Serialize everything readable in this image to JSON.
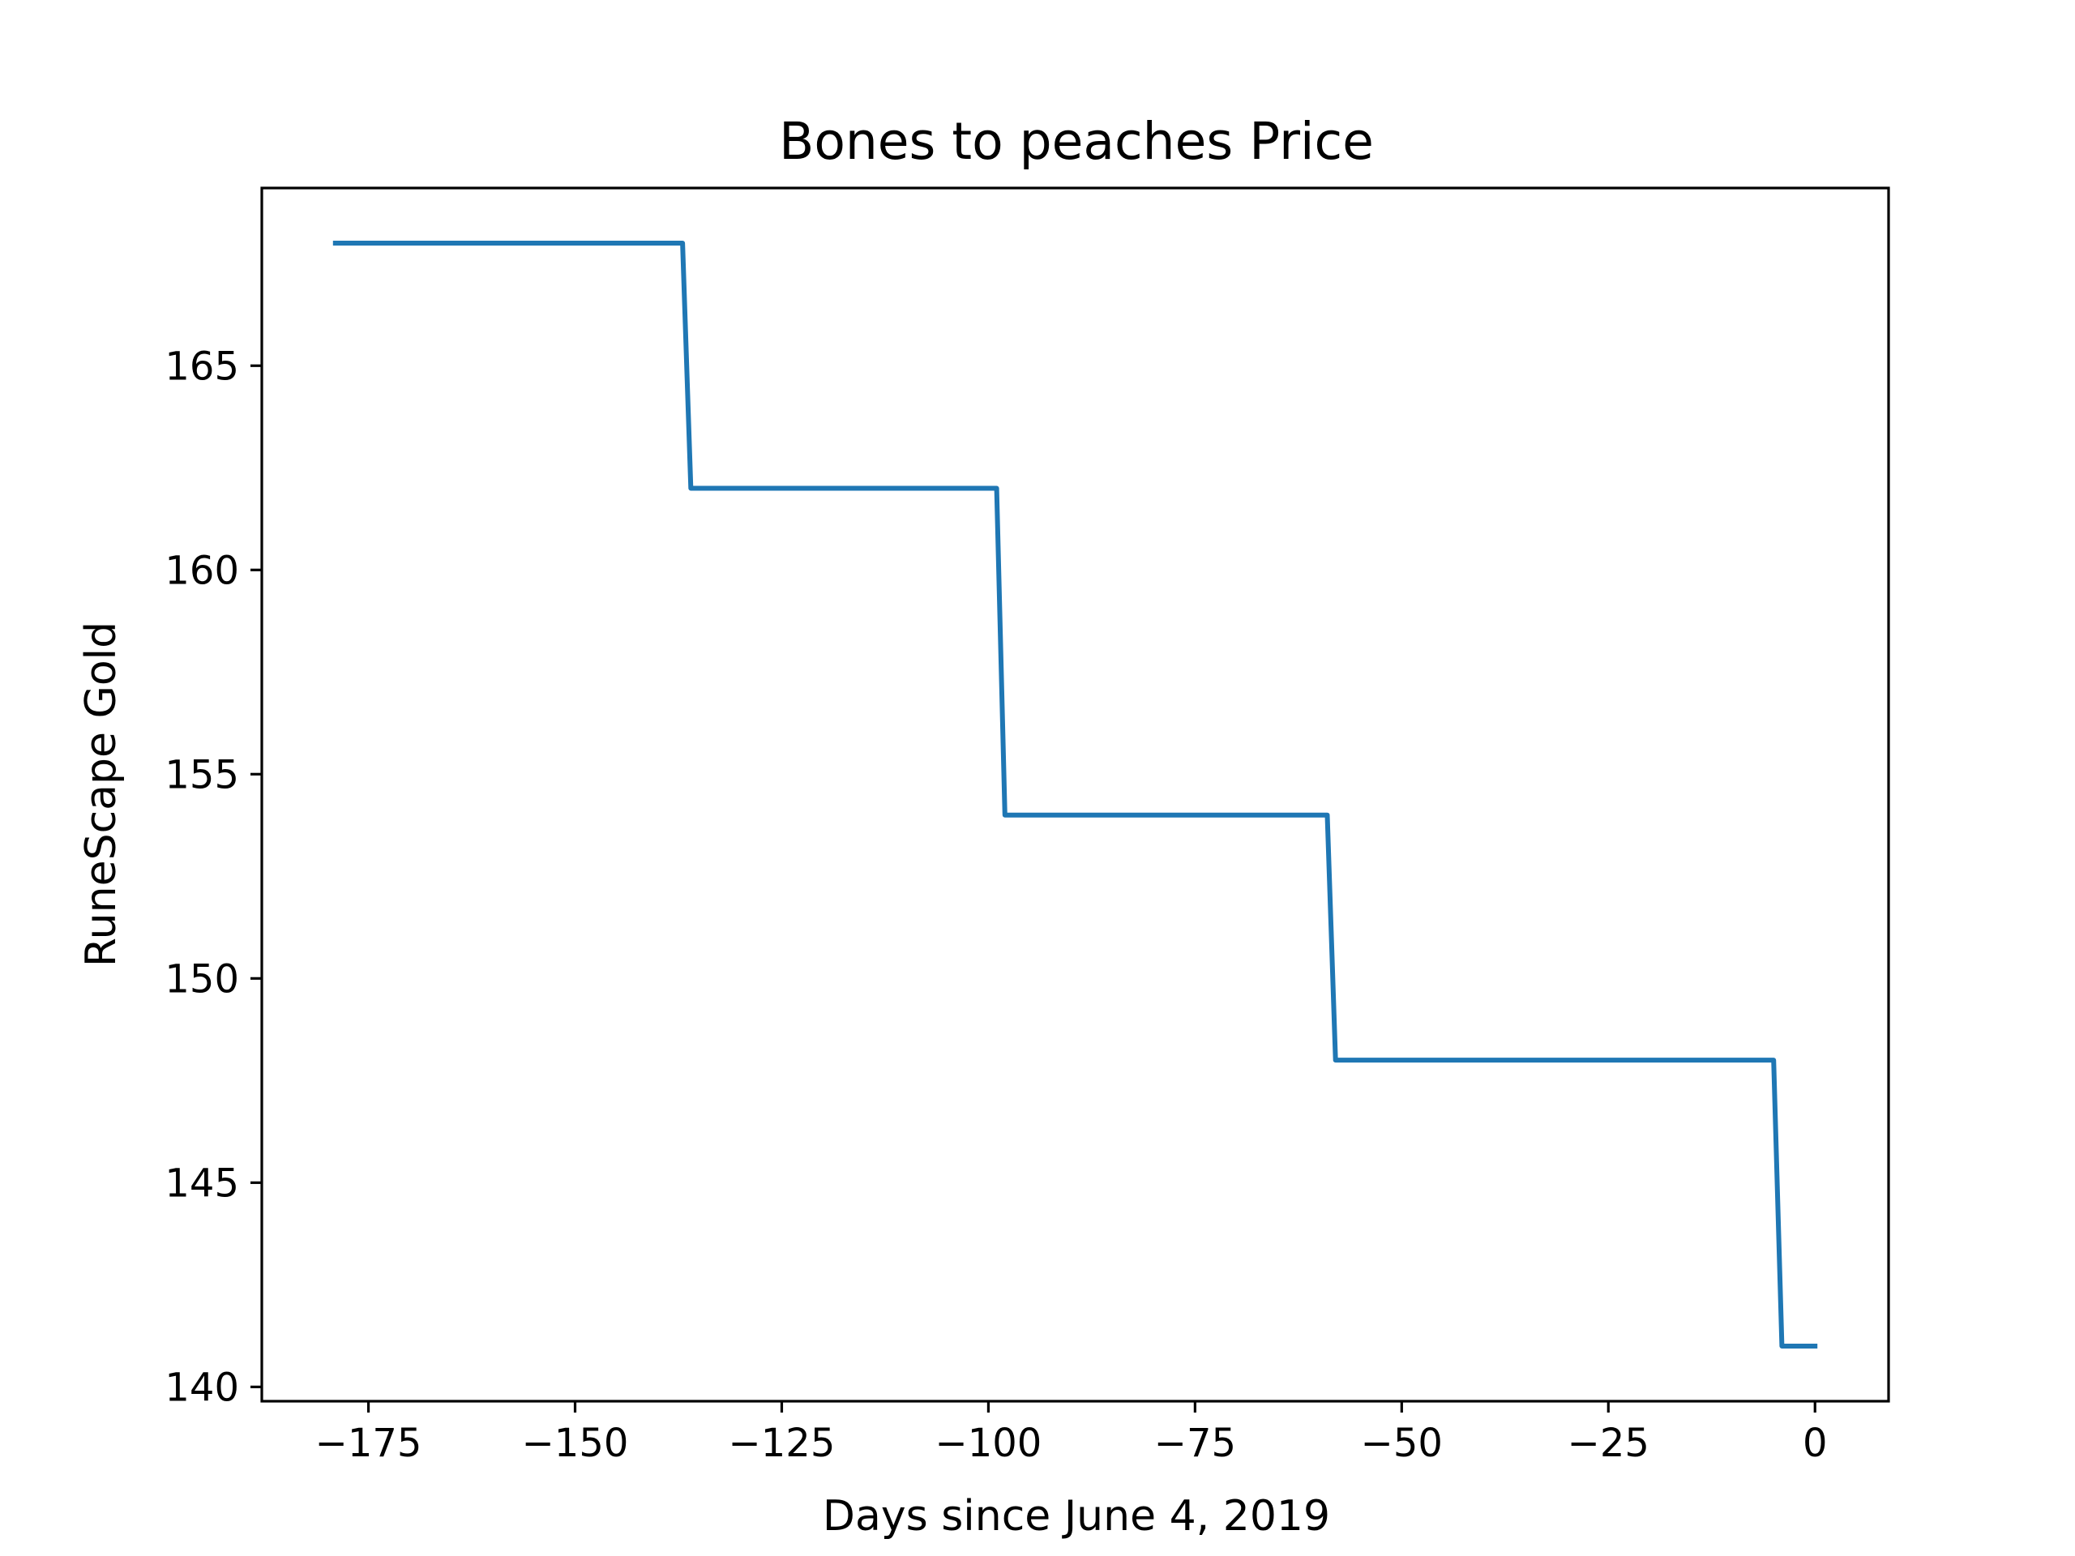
{
  "chart_data": {
    "type": "line",
    "title": "Bones to peaches Price",
    "xlabel": "Days since June 4, 2019",
    "ylabel": "RuneScape Gold",
    "xlim": [
      -187.9,
      8.9
    ],
    "ylim": [
      139.65,
      169.35
    ],
    "xticks": [
      -175,
      -150,
      -125,
      -100,
      -75,
      -50,
      -25,
      0
    ],
    "xtick_labels": [
      "−175",
      "−150",
      "−125",
      "−100",
      "−75",
      "−50",
      "−25",
      "0"
    ],
    "yticks": [
      140,
      145,
      150,
      155,
      160,
      165
    ],
    "ytick_labels": [
      "140",
      "145",
      "150",
      "155",
      "160",
      "165"
    ],
    "grid": false,
    "series": [
      {
        "color": "#1f77b4",
        "x": [
          -179,
          -137,
          -136,
          -99,
          -98,
          -59,
          -58,
          -5,
          -4,
          0
        ],
        "y": [
          168,
          168,
          162,
          162,
          154,
          154,
          148,
          148,
          141,
          141
        ]
      }
    ]
  }
}
